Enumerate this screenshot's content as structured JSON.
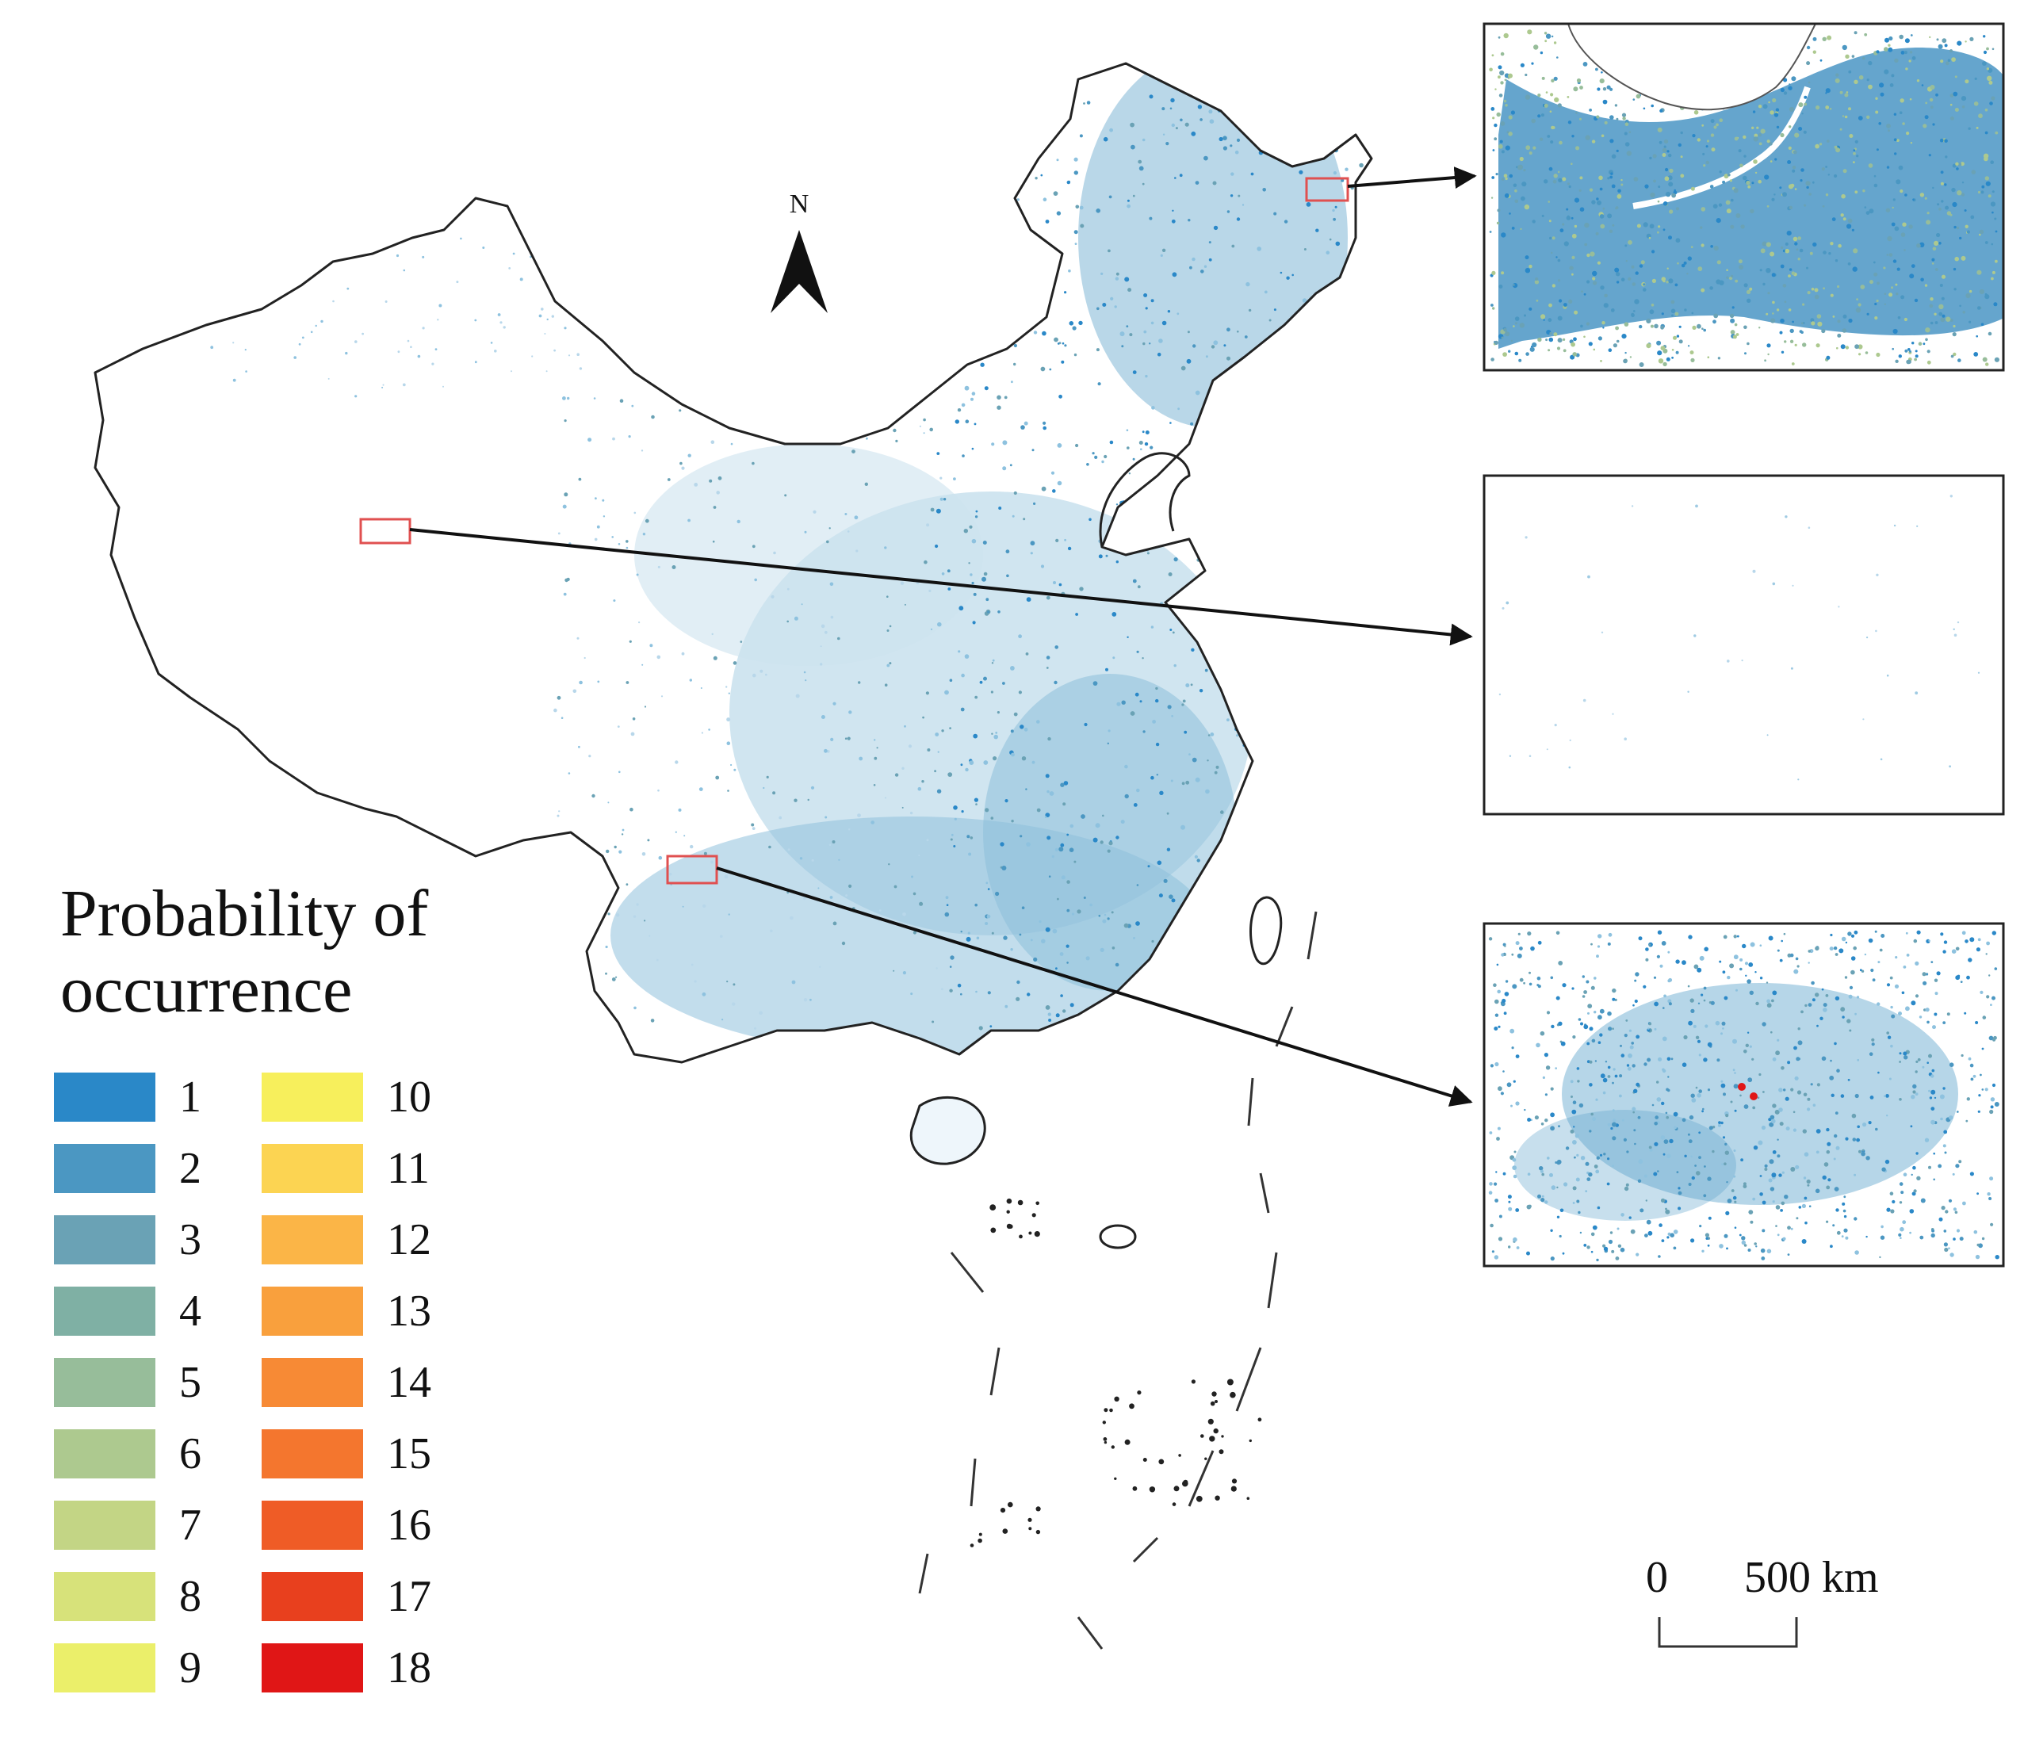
{
  "north_label": "N",
  "legend": {
    "title_line1": "Probability of",
    "title_line2": "occurrence",
    "classes": [
      {
        "label": "1",
        "color": "#2a88c8"
      },
      {
        "label": "2",
        "color": "#4b97c2"
      },
      {
        "label": "3",
        "color": "#6aa2b5"
      },
      {
        "label": "4",
        "color": "#7fb0a4"
      },
      {
        "label": "5",
        "color": "#97bd9a"
      },
      {
        "label": "6",
        "color": "#adc98f"
      },
      {
        "label": "7",
        "color": "#c3d585"
      },
      {
        "label": "8",
        "color": "#d7e27a"
      },
      {
        "label": "9",
        "color": "#ebef6a"
      },
      {
        "label": "10",
        "color": "#f7ef5c"
      },
      {
        "label": "11",
        "color": "#fcd452"
      },
      {
        "label": "12",
        "color": "#fbb547"
      },
      {
        "label": "13",
        "color": "#f9a03d"
      },
      {
        "label": "14",
        "color": "#f78a35"
      },
      {
        "label": "15",
        "color": "#f4762e"
      },
      {
        "label": "16",
        "color": "#ef5c26"
      },
      {
        "label": "17",
        "color": "#e8401e"
      },
      {
        "label": "18",
        "color": "#e01616"
      }
    ]
  },
  "scale_bar": {
    "start_label": "0",
    "end_label": "500 km"
  },
  "insets": [
    {
      "name": "northeast-inset",
      "density": "high"
    },
    {
      "name": "northwest-inset",
      "density": "very-low"
    },
    {
      "name": "southwest-inset",
      "density": "medium",
      "hotspot_color": "#e01616"
    }
  ],
  "colors": {
    "outline": "#222222",
    "highlight_box": "#e05050",
    "arrow": "#111111",
    "occurrence_base": "#2a88c8"
  }
}
